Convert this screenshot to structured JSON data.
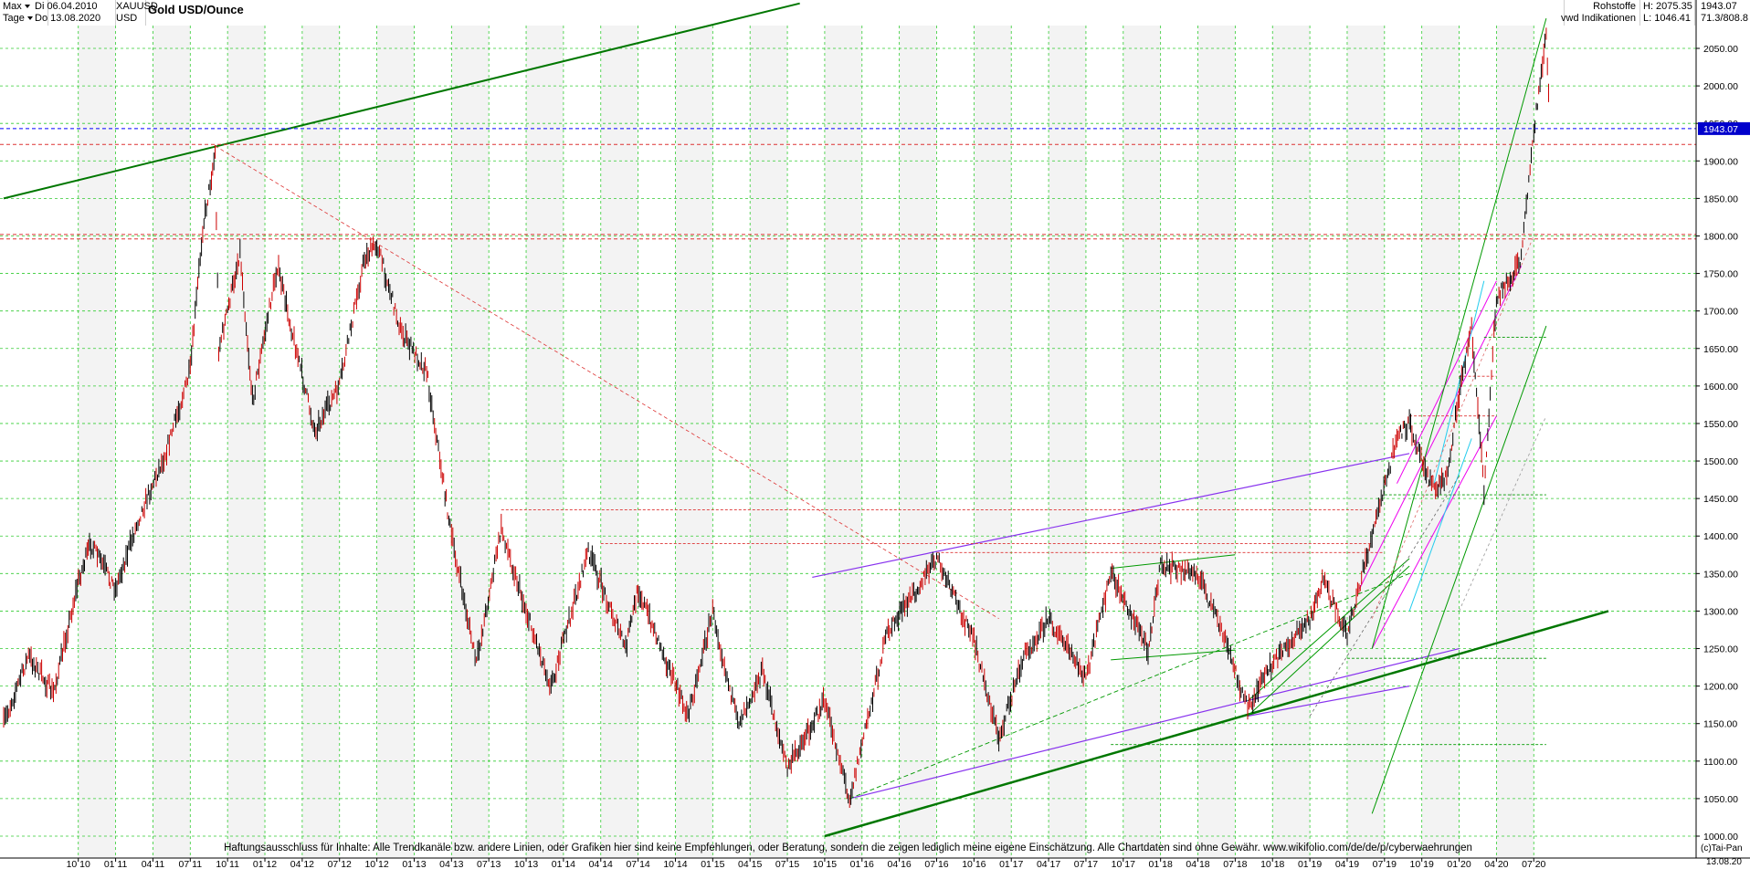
{
  "header": {
    "period_select": "Max",
    "interval_select": "Tage",
    "date_from": "Di 06.04.2010",
    "date_to": "Do 13.08.2020",
    "symbol": "XAUUSD",
    "currency": "USD",
    "title": "Gold USD/Ounce",
    "category": "Rohstoffe",
    "source": "vwd Indikationen",
    "high": "H: 2075.35",
    "low": "L: 1046.41",
    "last_value": "1943.07",
    "ratio": "71.3/808.8"
  },
  "footer": {
    "disclaimer": "Haftungsausschluss für Inhalte: Alle Trendkanäle bzw. andere Linien, oder Grafiken hier sind keine Empfehlungen, oder Beratung, sondern die zeigen lediglich meine eigene Einschätzung. Alle Chartdaten sind ohne Gewähr.  www.wikifolio.com/de/de/p/cyberwaehrungen",
    "copyright": "(c)Tai-Pan",
    "end_date": "13.08.20"
  },
  "colors": {
    "up_candle": "#000000",
    "down_candle": "#cc0000",
    "grid": "#33cc33",
    "current_price_line": "#0000ff",
    "price_tag_bg": "#0000cc",
    "trend_main": "#007700",
    "trend_channel": "#009900",
    "trend_violet": "#8833ee",
    "trend_magenta": "#ee00ee",
    "trend_cyan": "#22ccee",
    "support_red": "#dd3333"
  },
  "chart_data": {
    "type": "line",
    "title": "Gold USD/Ounce",
    "xlabel": "",
    "ylabel": "",
    "ylim": [
      1000,
      2100
    ],
    "grid": true,
    "y_ticks": [
      1000,
      1050,
      1100,
      1150,
      1200,
      1250,
      1300,
      1350,
      1400,
      1450,
      1500,
      1550,
      1600,
      1650,
      1700,
      1750,
      1800,
      1850,
      1900,
      1950,
      2000,
      2050
    ],
    "x_tick_labels": [
      "10 10",
      "01 11",
      "04 11",
      "07 11",
      "10 11",
      "01 12",
      "04 12",
      "07 12",
      "10 12",
      "01 13",
      "04 13",
      "07 13",
      "10 13",
      "01 14",
      "04 14",
      "07 14",
      "10 14",
      "01 15",
      "04 15",
      "07 15",
      "10 15",
      "01 16",
      "04 16",
      "07 16",
      "10 16",
      "01 17",
      "04 17",
      "07 17",
      "10 17",
      "01 18",
      "04 18",
      "07 18",
      "10 18",
      "01 19",
      "04 19",
      "07 19",
      "10 19",
      "01 20",
      "04 20",
      "07 20"
    ],
    "series": [
      {
        "values": [
          [
            "2010-04",
            1150
          ],
          [
            "2010-06",
            1240
          ],
          [
            "2010-08",
            1190
          ],
          [
            "2010-10",
            1340
          ],
          [
            "2010-11",
            1390
          ],
          [
            "2011-01",
            1330
          ],
          [
            "2011-03",
            1430
          ],
          [
            "2011-05",
            1510
          ],
          [
            "2011-07",
            1620
          ],
          [
            "2011-08",
            1810
          ],
          [
            "2011-09",
            1910
          ],
          [
            "2011-09",
            1650
          ],
          [
            "2011-10",
            1700
          ],
          [
            "2011-11",
            1780
          ],
          [
            "2011-12",
            1580
          ],
          [
            "2012-02",
            1760
          ],
          [
            "2012-05",
            1540
          ],
          [
            "2012-07",
            1600
          ],
          [
            "2012-09",
            1770
          ],
          [
            "2012-10",
            1790
          ],
          [
            "2012-12",
            1670
          ],
          [
            "2013-02",
            1620
          ],
          [
            "2013-04",
            1400
          ],
          [
            "2013-06",
            1230
          ],
          [
            "2013-08",
            1410
          ],
          [
            "2013-10",
            1300
          ],
          [
            "2013-12",
            1200
          ],
          [
            "2014-03",
            1380
          ],
          [
            "2014-06",
            1250
          ],
          [
            "2014-07",
            1330
          ],
          [
            "2014-11",
            1160
          ],
          [
            "2015-01",
            1300
          ],
          [
            "2015-03",
            1150
          ],
          [
            "2015-05",
            1220
          ],
          [
            "2015-07",
            1090
          ],
          [
            "2015-10",
            1180
          ],
          [
            "2015-12",
            1050
          ],
          [
            "2016-03",
            1270
          ],
          [
            "2016-07",
            1370
          ],
          [
            "2016-10",
            1260
          ],
          [
            "2016-12",
            1130
          ],
          [
            "2017-02",
            1240
          ],
          [
            "2017-04",
            1290
          ],
          [
            "2017-07",
            1210
          ],
          [
            "2017-09",
            1350
          ],
          [
            "2017-12",
            1250
          ],
          [
            "2018-01",
            1360
          ],
          [
            "2018-04",
            1350
          ],
          [
            "2018-06",
            1270
          ],
          [
            "2018-08",
            1170
          ],
          [
            "2018-10",
            1230
          ],
          [
            "2019-01",
            1290
          ],
          [
            "2019-02",
            1340
          ],
          [
            "2019-04",
            1270
          ],
          [
            "2019-06",
            1400
          ],
          [
            "2019-08",
            1530
          ],
          [
            "2019-09",
            1550
          ],
          [
            "2019-11",
            1460
          ],
          [
            "2019-12",
            1480
          ],
          [
            "2020-01",
            1590
          ],
          [
            "2020-02",
            1680
          ],
          [
            "2020-03",
            1460
          ],
          [
            "2020-04",
            1720
          ],
          [
            "2020-05",
            1740
          ],
          [
            "2020-06",
            1770
          ],
          [
            "2020-07",
            1940
          ],
          [
            "2020-08",
            2070
          ],
          [
            "2020-08",
            1943
          ]
        ]
      }
    ],
    "horizontal_lines": [
      {
        "value": 1943.07,
        "style": "dashed",
        "color": "#0000ff"
      },
      {
        "value": 1922,
        "style": "dashed",
        "color": "#dd3333"
      },
      {
        "value": 1802,
        "style": "dashed",
        "color": "#dd3333"
      },
      {
        "value": 1796,
        "style": "dashed",
        "color": "#dd3333"
      }
    ]
  }
}
